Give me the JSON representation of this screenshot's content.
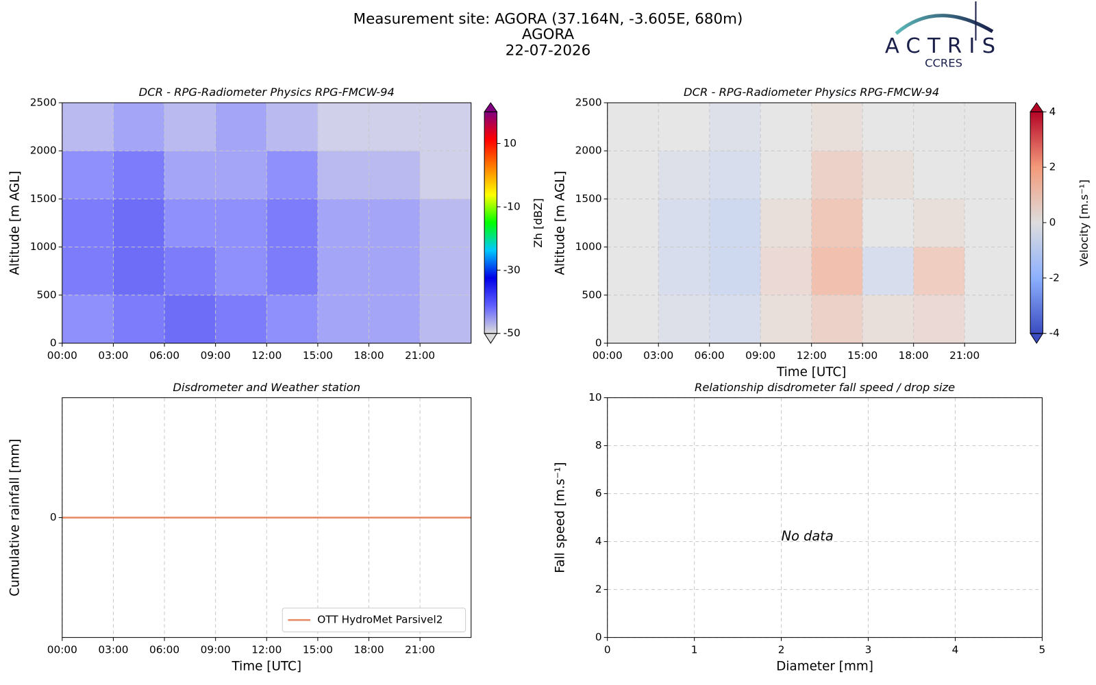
{
  "header": {
    "title_lines": [
      "Measurement site: AGORA (37.164N, -3.605E, 680m)",
      "AGORA",
      "22-07-2026"
    ],
    "logo": {
      "name": "ACTRIS",
      "subtitle": "CCRES"
    }
  },
  "chart_data": [
    {
      "type": "heatmap",
      "title": "DCR - RPG-Radiometer Physics RPG-FMCW-94",
      "ylabel": "Altitude [m AGL]",
      "xlim": [
        0,
        24
      ],
      "xticks": [
        {
          "value": 0,
          "label": "00:00"
        },
        {
          "value": 3,
          "label": "03:00"
        },
        {
          "value": 6,
          "label": "06:00"
        },
        {
          "value": 9,
          "label": "09:00"
        },
        {
          "value": 12,
          "label": "12:00"
        },
        {
          "value": 15,
          "label": "15:00"
        },
        {
          "value": 18,
          "label": "18:00"
        },
        {
          "value": 21,
          "label": "21:00"
        }
      ],
      "ylim": [
        0,
        2500
      ],
      "yticks": [
        0,
        500,
        1000,
        1500,
        2000,
        2500
      ],
      "grid": true,
      "x_bins": [
        0,
        3,
        6,
        9,
        12,
        15,
        18,
        21,
        24
      ],
      "y_bins": [
        0,
        500,
        1000,
        1500,
        2000,
        2500
      ],
      "values": [
        [
          -42,
          -40,
          -38,
          -40,
          -42,
          -44,
          -44,
          -46
        ],
        [
          -40,
          -38,
          -40,
          -42,
          -40,
          -44,
          -44,
          -46
        ],
        [
          -40,
          -38,
          -42,
          -42,
          -40,
          -44,
          -44,
          -46
        ],
        [
          -42,
          -40,
          -44,
          -44,
          -42,
          -46,
          -46,
          -48
        ],
        [
          -46,
          -44,
          -46,
          -44,
          -46,
          -48,
          -48,
          -48
        ]
      ],
      "colorbar": {
        "label": "Zh [dBZ]",
        "lim": [
          -50,
          20
        ],
        "ticks": [
          10,
          -10,
          -30,
          -50
        ],
        "colormap": [
          "#dcdcdc",
          "#6060ff",
          "#0000e6",
          "#00c8ff",
          "#00ff00",
          "#ffff00",
          "#ff8000",
          "#ff0000",
          "#800080"
        ]
      }
    },
    {
      "type": "heatmap",
      "title": "DCR - RPG-Radiometer Physics RPG-FMCW-94",
      "ylabel": "Altitude [m AGL]",
      "xlabel": "Time [UTC]",
      "xlim": [
        0,
        24
      ],
      "xticks": [
        {
          "value": 0,
          "label": "00:00"
        },
        {
          "value": 3,
          "label": "03:00"
        },
        {
          "value": 6,
          "label": "06:00"
        },
        {
          "value": 9,
          "label": "09:00"
        },
        {
          "value": 12,
          "label": "12:00"
        },
        {
          "value": 15,
          "label": "15:00"
        },
        {
          "value": 18,
          "label": "18:00"
        },
        {
          "value": 21,
          "label": "21:00"
        }
      ],
      "ylim": [
        0,
        2500
      ],
      "yticks": [
        0,
        500,
        1000,
        1500,
        2000,
        2500
      ],
      "grid": true,
      "x_bins": [
        0,
        3,
        6,
        9,
        12,
        15,
        18,
        21,
        24
      ],
      "y_bins": [
        0,
        500,
        1000,
        1500,
        2000,
        2500
      ],
      "values": [
        [
          0,
          -0.3,
          -0.5,
          0.3,
          0.8,
          0.3,
          0.5,
          0
        ],
        [
          0,
          -0.5,
          -0.8,
          0.5,
          1.5,
          -0.5,
          1,
          0
        ],
        [
          0,
          -0.5,
          -0.8,
          0.3,
          1.2,
          0,
          0.3,
          0
        ],
        [
          0,
          -0.3,
          -0.5,
          0,
          0.8,
          0.3,
          0,
          0
        ],
        [
          0,
          0,
          -0.3,
          0,
          0.3,
          0,
          0,
          0
        ]
      ],
      "colorbar": {
        "label": "Velocity [m.s⁻¹]",
        "lim": [
          -4,
          4
        ],
        "ticks": [
          4,
          2,
          0,
          -2,
          -4
        ],
        "colormap": [
          "#3b4cc0",
          "#8db0fe",
          "#dddddd",
          "#f49a7b",
          "#b40426"
        ]
      }
    },
    {
      "type": "line",
      "title": "Disdrometer and Weather station",
      "ylabel": "Cumulative rainfall [mm]",
      "xlabel": "Time [UTC]",
      "xlim": [
        0,
        24
      ],
      "xticks": [
        {
          "value": 0,
          "label": "00:00"
        },
        {
          "value": 3,
          "label": "03:00"
        },
        {
          "value": 6,
          "label": "06:00"
        },
        {
          "value": 9,
          "label": "09:00"
        },
        {
          "value": 12,
          "label": "12:00"
        },
        {
          "value": 15,
          "label": "15:00"
        },
        {
          "value": 18,
          "label": "18:00"
        },
        {
          "value": 21,
          "label": "21:00"
        }
      ],
      "ylim": [
        -0.055,
        0.055
      ],
      "yticks": [
        0
      ],
      "grid": true,
      "legend": "lower right",
      "series": [
        {
          "name": "OTT HydroMet Parsivel2",
          "color": "#e8875f",
          "x": [
            0,
            24
          ],
          "values": [
            0,
            0
          ]
        }
      ]
    },
    {
      "type": "scatter",
      "title": "Relationship disdrometer fall speed / drop size",
      "ylabel": "Fall speed [m.s⁻¹]",
      "xlabel": "Diameter [mm]",
      "xlim": [
        0,
        5
      ],
      "xticks": [
        0,
        1,
        2,
        3,
        4,
        5
      ],
      "ylim": [
        0,
        10
      ],
      "yticks": [
        0,
        2,
        4,
        6,
        8,
        10
      ],
      "grid": true,
      "annotation": "No data"
    }
  ]
}
